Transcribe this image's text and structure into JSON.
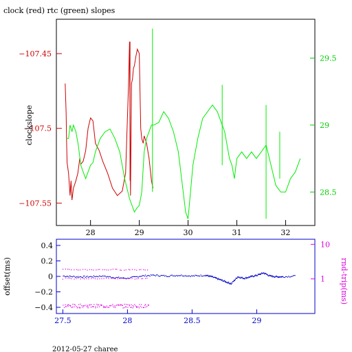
{
  "chart_data": [
    {
      "type": "line",
      "title": "clock (red) rtc (green) slopes",
      "xlabel": "",
      "ylabel": "clockslope",
      "xlim": [
        27.3,
        32.6
      ],
      "ylim": [
        -107.565,
        -107.427
      ],
      "y2lim": [
        28.25,
        29.79
      ],
      "x_ticks": [
        "28",
        "29",
        "30",
        "31",
        "32"
      ],
      "y_ticks": [
        "-107.45",
        "-107.5",
        "-107.55"
      ],
      "y2_ticks": [
        "29.5",
        "29",
        "28.5"
      ],
      "colors": {
        "clock": "#cc0000",
        "rtc": "#00ee00",
        "axis": "#000000"
      },
      "series": [
        {
          "axis": "left",
          "color": "#cc0000",
          "x": [
            27.48,
            27.5,
            27.51,
            27.52,
            27.55,
            27.58,
            27.6,
            27.62,
            27.65,
            27.7,
            27.74,
            27.78,
            27.8,
            27.85,
            27.9,
            27.95,
            28.0,
            28.05,
            28.1,
            28.18,
            28.25,
            28.35,
            28.45,
            28.55,
            28.65,
            28.72,
            28.78,
            28.8,
            28.82,
            28.84,
            28.86,
            28.88,
            28.9,
            28.93,
            28.96,
            29.0,
            29.03,
            29.05,
            29.08,
            29.1,
            29.15,
            29.2,
            29.25,
            29.28
          ],
          "y": [
            -107.47,
            -107.49,
            -107.51,
            -107.523,
            -107.53,
            -107.545,
            -107.535,
            -107.548,
            -107.54,
            -107.535,
            -107.53,
            -107.52,
            -107.524,
            -107.522,
            -107.515,
            -107.5,
            -107.493,
            -107.495,
            -107.51,
            -107.515,
            -107.522,
            -107.53,
            -107.54,
            -107.545,
            -107.542,
            -107.53,
            -107.47,
            -107.442,
            -107.545,
            -107.47,
            -107.467,
            -107.46,
            -107.458,
            -107.452,
            -107.447,
            -107.45,
            -107.5,
            -107.507,
            -107.51,
            -107.505,
            -107.51,
            -107.52,
            -107.535,
            -107.54
          ]
        },
        {
          "axis": "right",
          "color": "#00ee00",
          "x": [
            27.5,
            27.55,
            27.58,
            27.62,
            27.65,
            27.7,
            27.75,
            27.8,
            27.85,
            27.9,
            27.95,
            28.0,
            28.05,
            28.1,
            28.15,
            28.2,
            28.3,
            28.4,
            28.5,
            28.6,
            28.7,
            28.8,
            28.85,
            28.9,
            28.95,
            29.0,
            29.05,
            29.1,
            29.15,
            29.2,
            29.25,
            29.3,
            29.4,
            29.5,
            29.6,
            29.7,
            29.8,
            29.9,
            29.95,
            30.0,
            30.05,
            30.1,
            30.2,
            30.3,
            30.4,
            30.5,
            30.6,
            30.7,
            30.75,
            30.8,
            30.85,
            30.9,
            30.95,
            31.0,
            31.1,
            31.2,
            31.3,
            31.4,
            31.5,
            31.6,
            31.7,
            31.8,
            31.9,
            32.0,
            32.1,
            32.2,
            32.3
          ],
          "y": [
            28.9,
            28.9,
            29.0,
            28.95,
            29.0,
            28.95,
            28.85,
            28.7,
            28.65,
            28.6,
            28.65,
            28.7,
            28.72,
            28.8,
            28.85,
            28.9,
            28.95,
            28.97,
            28.9,
            28.8,
            28.6,
            28.45,
            28.4,
            28.35,
            28.38,
            28.4,
            28.5,
            28.8,
            28.9,
            28.95,
            29.0,
            29.0,
            29.02,
            29.1,
            29.05,
            28.95,
            28.8,
            28.5,
            28.35,
            28.3,
            28.5,
            28.7,
            28.9,
            29.05,
            29.1,
            29.15,
            29.1,
            29.0,
            28.95,
            28.85,
            28.75,
            28.7,
            28.6,
            28.75,
            28.8,
            28.75,
            28.8,
            28.75,
            28.8,
            28.85,
            28.7,
            28.55,
            28.5,
            28.5,
            28.6,
            28.65,
            28.75
          ]
        }
      ],
      "spikes": [
        {
          "axis": "left",
          "x": 28.81,
          "from": -107.535,
          "to": -107.442
        },
        {
          "axis": "right",
          "x": 29.27,
          "from": 28.5,
          "to": 29.72
        },
        {
          "axis": "right",
          "x": 30.7,
          "from": 28.7,
          "to": 29.3
        },
        {
          "axis": "right",
          "x": 31.6,
          "from": 28.3,
          "to": 29.15
        },
        {
          "axis": "right",
          "x": 31.88,
          "from": 28.6,
          "to": 28.95
        }
      ]
    },
    {
      "type": "scatter",
      "xlabel": "",
      "ylabel": "offset(ms)",
      "y2label": "rnd-trip(ms)",
      "xlim": [
        27.45,
        29.45
      ],
      "ylim": [
        -0.48,
        0.48
      ],
      "x_ticks": [
        "27.5",
        "28",
        "28.5",
        "29"
      ],
      "y_ticks": [
        "0.4",
        "0.2",
        "0",
        "-0.2",
        "-0.4"
      ],
      "y2_ticks": [
        "10",
        "1"
      ],
      "colors": {
        "offset": "#0000cc",
        "rtrip": "#dd00dd",
        "axis": "#0000cc"
      },
      "series": [
        {
          "name": "offset",
          "axis": "left",
          "color": "#0000cc",
          "x": [
            27.5,
            27.6,
            27.7,
            27.8,
            27.9,
            28.0,
            28.1,
            28.2,
            28.3,
            28.4,
            28.5,
            28.6,
            28.65,
            28.7,
            28.75,
            28.8,
            28.85,
            28.9,
            28.95,
            29.0,
            29.05,
            29.1,
            29.15,
            29.2,
            29.3
          ],
          "y": [
            0.01,
            0.0,
            0.0,
            0.01,
            -0.01,
            -0.02,
            0.01,
            0.02,
            0.01,
            0.02,
            0.01,
            0.02,
            0.0,
            -0.03,
            -0.06,
            -0.09,
            0.0,
            -0.02,
            0.0,
            0.02,
            0.05,
            0.01,
            0.0,
            0.0,
            0.01
          ]
        },
        {
          "name": "rnd-trip",
          "axis": "right",
          "color": "#dd00dd",
          "x_ranges": [
            [
              27.5,
              28.17
            ],
            [
              27.5,
              28.17
            ],
            [
              27.5,
              28.17
            ]
          ],
          "y_bands": [
            1.05,
            0.17,
            1.9
          ]
        }
      ]
    }
  ],
  "footer": {
    "text": "2012-05-27 charee"
  }
}
